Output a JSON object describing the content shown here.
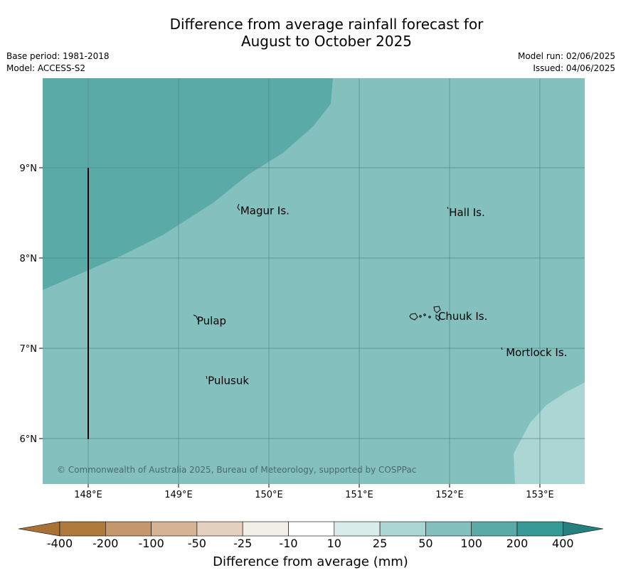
{
  "title_line1": "Difference from average rainfall forecast for",
  "title_line2": "August to October 2025",
  "base_period": "Base period: 1981-2018",
  "model": "Model: ACCESS-S2",
  "model_run": "Model run: 02/06/2025",
  "issued": "Issued: 04/06/2025",
  "copyright": "© Commonwealth of Australia 2025, Bureau of Meteorology, supported by COSPPac",
  "lat_ticks": [
    "9°N",
    "8°N",
    "7°N",
    "6°N"
  ],
  "lon_ticks": [
    "148°E",
    "149°E",
    "150°E",
    "151°E",
    "152°E",
    "153°E"
  ],
  "places": [
    {
      "name": "Magur Is.",
      "lat": 8.57,
      "lon": 149.66
    },
    {
      "name": "Hall Is.",
      "lat": 8.55,
      "lon": 151.97
    },
    {
      "name": "Pulap",
      "lat": 7.35,
      "lon": 149.18
    },
    {
      "name": "Chuuk Is.",
      "lat": 7.4,
      "lon": 151.85
    },
    {
      "name": "Mortlock Is.",
      "lat": 7.0,
      "lon": 152.6
    },
    {
      "name": "Pulusuk",
      "lat": 6.69,
      "lon": 149.3
    }
  ],
  "colorbar": {
    "label": "Difference from average (mm)",
    "ticks": [
      "-400",
      "-200",
      "-100",
      "-50",
      "-25",
      "-10",
      "10",
      "25",
      "50",
      "100",
      "200",
      "400"
    ],
    "colors": [
      "#a87234",
      "#b07a3c",
      "#c4986c",
      "#d4b494",
      "#e4d0be",
      "#f2eee8",
      "#ffffff",
      "#d8ecea",
      "#acd6d4",
      "#84c0be",
      "#5aaaa8",
      "#369a96",
      "#28807e"
    ]
  },
  "regions": [
    {
      "category": "100 to 200",
      "color": "#5aaaa8"
    },
    {
      "category": "50 to 100",
      "color": "#84c0be"
    },
    {
      "category": "25 to 50",
      "color": "#acd6d4"
    }
  ]
}
